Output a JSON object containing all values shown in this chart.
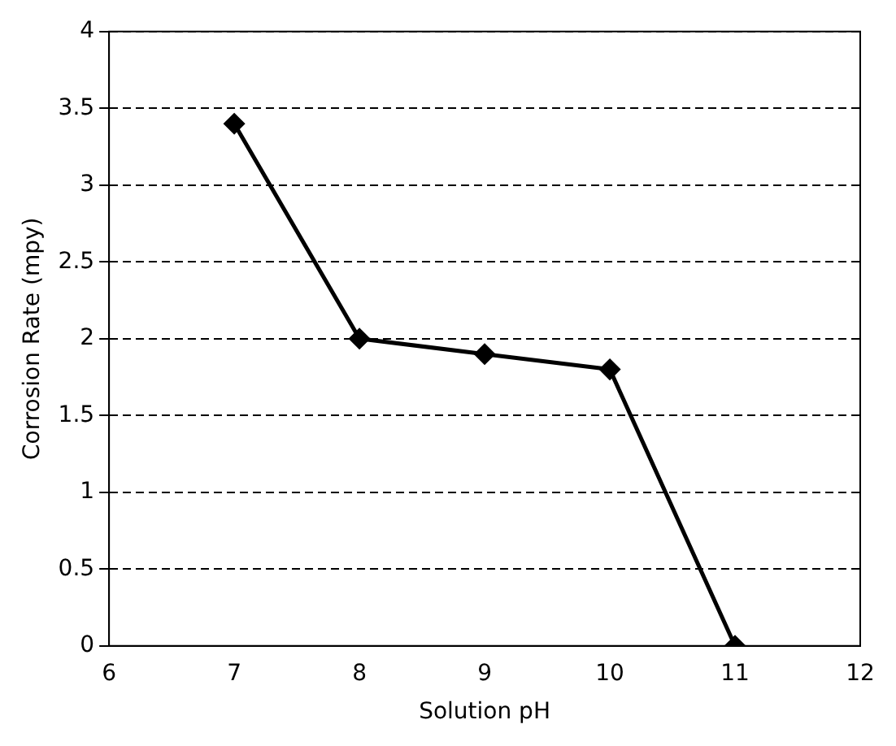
{
  "chart_data": {
    "type": "line",
    "xlabel": "Solution pH",
    "ylabel": "Corrosion Rate (mpy)",
    "x": [
      7,
      8,
      9,
      10,
      11
    ],
    "series": [
      {
        "color": "#000000",
        "values": [
          3.4,
          2,
          1.9,
          1.8,
          0
        ]
      }
    ],
    "xlim": [
      6,
      12
    ],
    "xticks": [
      6,
      7,
      8,
      9,
      10,
      11,
      12
    ],
    "ylim": [
      0,
      4
    ],
    "yticks": [
      0,
      0.5,
      1,
      1.5,
      2,
      2.5,
      3,
      3.5,
      4
    ],
    "grid": "y",
    "marker": "diamond",
    "line_style": "solid",
    "legend": false
  }
}
